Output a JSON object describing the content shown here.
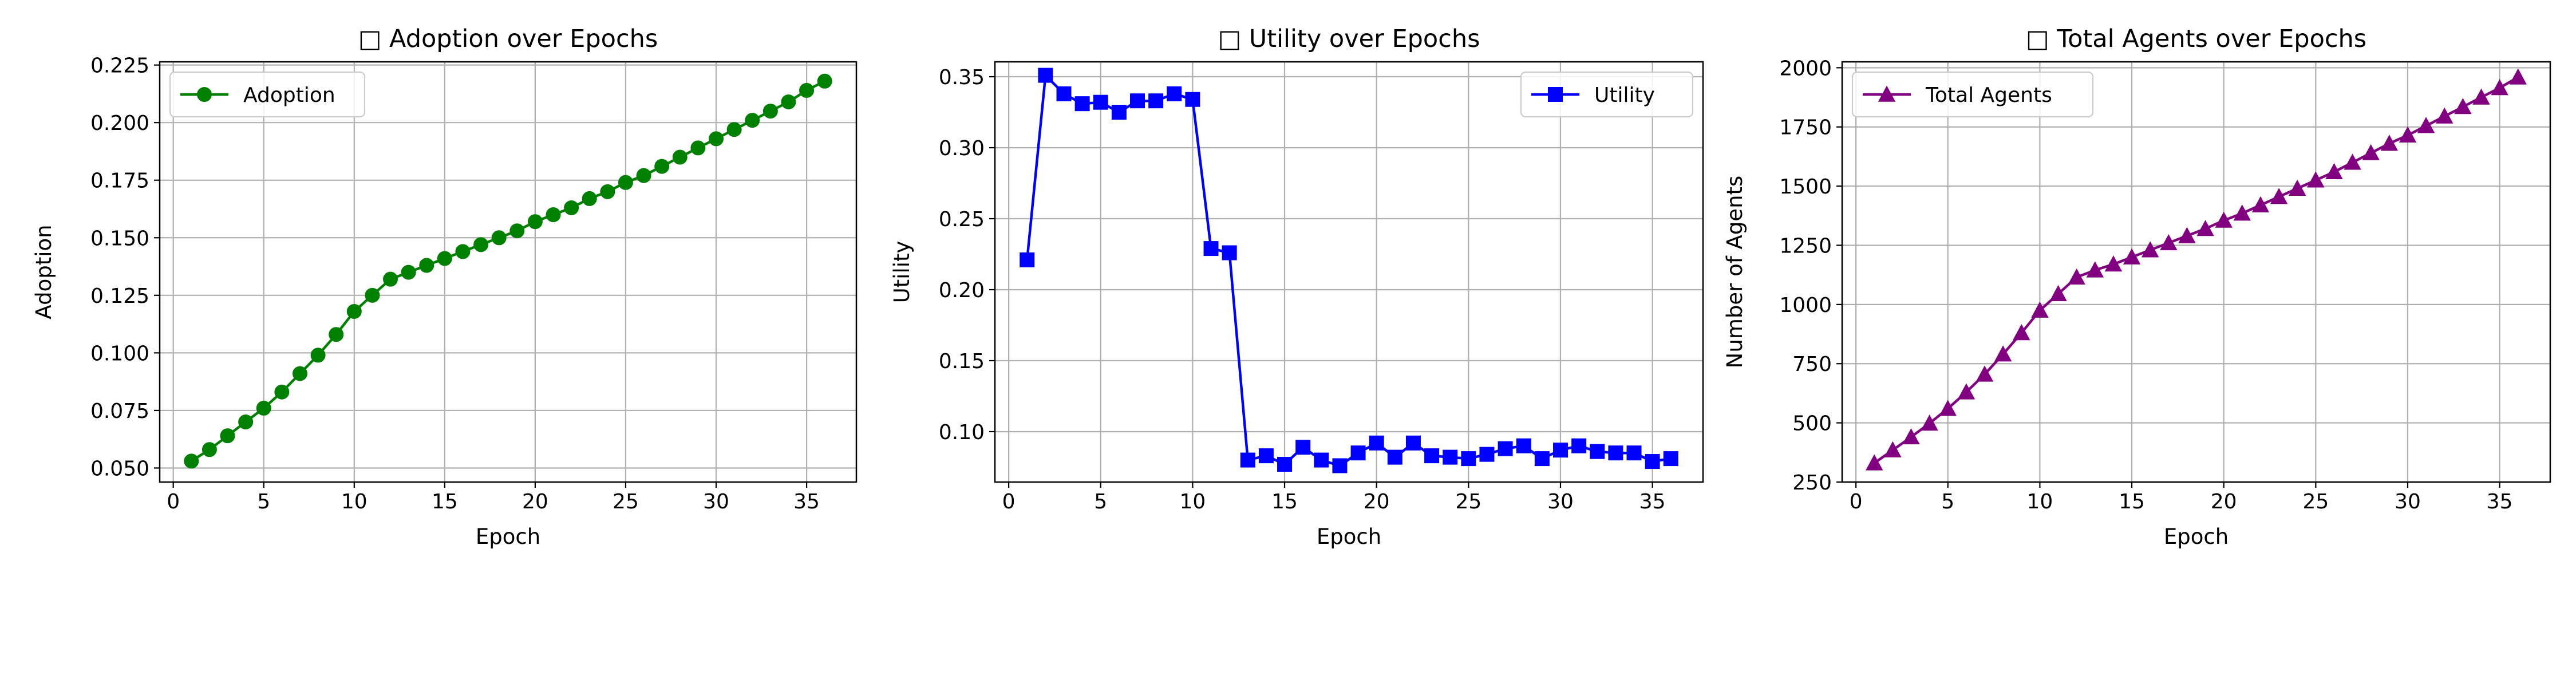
{
  "chart_data": [
    {
      "type": "line",
      "title": "□ Adoption over Epochs",
      "xlabel": "Epoch",
      "ylabel": "Adoption",
      "xlim": [
        -0.75,
        37.75
      ],
      "ylim": [
        0.0439,
        0.2264
      ],
      "xticks": [
        0,
        5,
        10,
        15,
        20,
        25,
        30,
        35
      ],
      "xtick_labels": [
        "0",
        "5",
        "10",
        "15",
        "20",
        "25",
        "30",
        "35"
      ],
      "yticks": [
        0.05,
        0.075,
        0.1,
        0.125,
        0.15,
        0.175,
        0.2,
        0.225
      ],
      "ytick_labels": [
        "0.050",
        "0.075",
        "0.100",
        "0.125",
        "0.150",
        "0.175",
        "0.200",
        "0.225"
      ],
      "grid": true,
      "legend_position": "top-left",
      "series": [
        {
          "name": "Adoption",
          "color": "#008000",
          "marker": "circle",
          "x": [
            1,
            2,
            3,
            4,
            5,
            6,
            7,
            8,
            9,
            10,
            11,
            12,
            13,
            14,
            15,
            16,
            17,
            18,
            19,
            20,
            21,
            22,
            23,
            24,
            25,
            26,
            27,
            28,
            29,
            30,
            31,
            32,
            33,
            34,
            35,
            36
          ],
          "values": [
            0.053,
            0.058,
            0.064,
            0.07,
            0.076,
            0.083,
            0.091,
            0.099,
            0.108,
            0.118,
            0.125,
            0.132,
            0.135,
            0.138,
            0.141,
            0.144,
            0.147,
            0.15,
            0.153,
            0.157,
            0.16,
            0.163,
            0.167,
            0.17,
            0.174,
            0.177,
            0.181,
            0.185,
            0.189,
            0.193,
            0.197,
            0.201,
            0.205,
            0.209,
            0.214,
            0.218
          ]
        }
      ]
    },
    {
      "type": "line",
      "title": "□ Utility over Epochs",
      "xlabel": "Epoch",
      "ylabel": "Utility",
      "xlim": [
        -0.75,
        37.75
      ],
      "ylim": [
        0.0645,
        0.3605
      ],
      "xticks": [
        0,
        5,
        10,
        15,
        20,
        25,
        30,
        35
      ],
      "xtick_labels": [
        "0",
        "5",
        "10",
        "15",
        "20",
        "25",
        "30",
        "35"
      ],
      "yticks": [
        0.1,
        0.15,
        0.2,
        0.25,
        0.3,
        0.35
      ],
      "ytick_labels": [
        "0.10",
        "0.15",
        "0.20",
        "0.25",
        "0.30",
        "0.35"
      ],
      "grid": true,
      "legend_position": "top-right",
      "series": [
        {
          "name": "Utility",
          "color": "#0000ff",
          "marker": "square",
          "x": [
            1,
            2,
            3,
            4,
            5,
            6,
            7,
            8,
            9,
            10,
            11,
            12,
            13,
            14,
            15,
            16,
            17,
            18,
            19,
            20,
            21,
            22,
            23,
            24,
            25,
            26,
            27,
            28,
            29,
            30,
            31,
            32,
            33,
            34,
            35,
            36
          ],
          "values": [
            0.221,
            0.351,
            0.338,
            0.331,
            0.332,
            0.325,
            0.333,
            0.333,
            0.338,
            0.334,
            0.229,
            0.226,
            0.08,
            0.083,
            0.077,
            0.089,
            0.08,
            0.076,
            0.085,
            0.092,
            0.082,
            0.092,
            0.083,
            0.082,
            0.081,
            0.084,
            0.088,
            0.09,
            0.081,
            0.087,
            0.09,
            0.086,
            0.085,
            0.085,
            0.079,
            0.081
          ]
        }
      ]
    },
    {
      "type": "line",
      "title": "□ Total Agents over Epochs",
      "xlabel": "Epoch",
      "ylabel": "Number of Agents",
      "xlim": [
        -0.75,
        37.75
      ],
      "ylim": [
        250,
        2025
      ],
      "xticks": [
        0,
        5,
        10,
        15,
        20,
        25,
        30,
        35
      ],
      "xtick_labels": [
        "0",
        "5",
        "10",
        "15",
        "20",
        "25",
        "30",
        "35"
      ],
      "yticks": [
        250,
        500,
        750,
        1000,
        1250,
        1500,
        1750,
        2000
      ],
      "ytick_labels": [
        "250",
        "500",
        "750",
        "1000",
        "1250",
        "1500",
        "1750",
        "2000"
      ],
      "grid": true,
      "legend_position": "top-left",
      "series": [
        {
          "name": "Total Agents",
          "color": "#800080",
          "marker": "triangle-up",
          "x": [
            1,
            2,
            3,
            4,
            5,
            6,
            7,
            8,
            9,
            10,
            11,
            12,
            13,
            14,
            15,
            16,
            17,
            18,
            19,
            20,
            21,
            22,
            23,
            24,
            25,
            26,
            27,
            28,
            29,
            30,
            31,
            32,
            33,
            34,
            35,
            36
          ],
          "values": [
            330,
            385,
            440,
            498,
            560,
            630,
            705,
            790,
            880,
            975,
            1045,
            1115,
            1145,
            1170,
            1200,
            1230,
            1260,
            1290,
            1320,
            1355,
            1385,
            1420,
            1455,
            1490,
            1525,
            1560,
            1600,
            1640,
            1680,
            1715,
            1755,
            1795,
            1835,
            1875,
            1915,
            1960
          ]
        }
      ]
    }
  ]
}
